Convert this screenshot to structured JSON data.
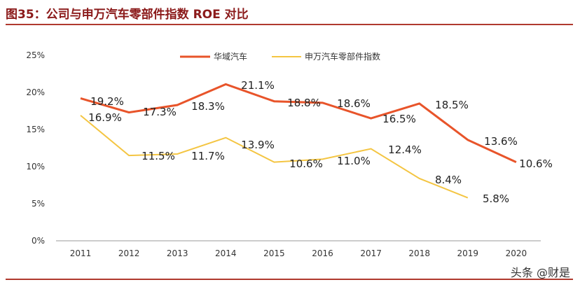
{
  "title": "图35：公司与申万汽车零部件指数 ROE 对比",
  "watermark": "头条 @财是",
  "chart_data": {
    "type": "line",
    "title": "",
    "xlabel": "",
    "ylabel": "",
    "categories": [
      "2011",
      "2012",
      "2013",
      "2014",
      "2015",
      "2016",
      "2017",
      "2018",
      "2019",
      "2020"
    ],
    "yticks": [
      "0%",
      "5%",
      "10%",
      "15%",
      "20%",
      "25%"
    ],
    "ylim": [
      0,
      25
    ],
    "grid": false,
    "legend": "top-center",
    "series": [
      {
        "name": "华域汽车",
        "color": "#e8542a",
        "values": [
          19.2,
          17.3,
          18.3,
          21.1,
          18.8,
          18.6,
          16.5,
          18.5,
          13.6,
          10.6
        ],
        "labels": [
          "19.2%",
          "17.3%",
          "18.3%",
          "21.1%",
          "18.8%",
          "18.6%",
          "16.5%",
          "18.5%",
          "13.6%",
          "10.6%"
        ]
      },
      {
        "name": "申万汽车零部件指数",
        "color": "#f4c542",
        "values": [
          16.9,
          11.5,
          11.7,
          13.9,
          10.6,
          11.0,
          12.4,
          8.4,
          5.8,
          null
        ],
        "labels": [
          "16.9%",
          "11.5%",
          "11.7%",
          "13.9%",
          "10.6%",
          "11.0%",
          "12.4%",
          "8.4%",
          "5.8%",
          ""
        ]
      }
    ]
  }
}
